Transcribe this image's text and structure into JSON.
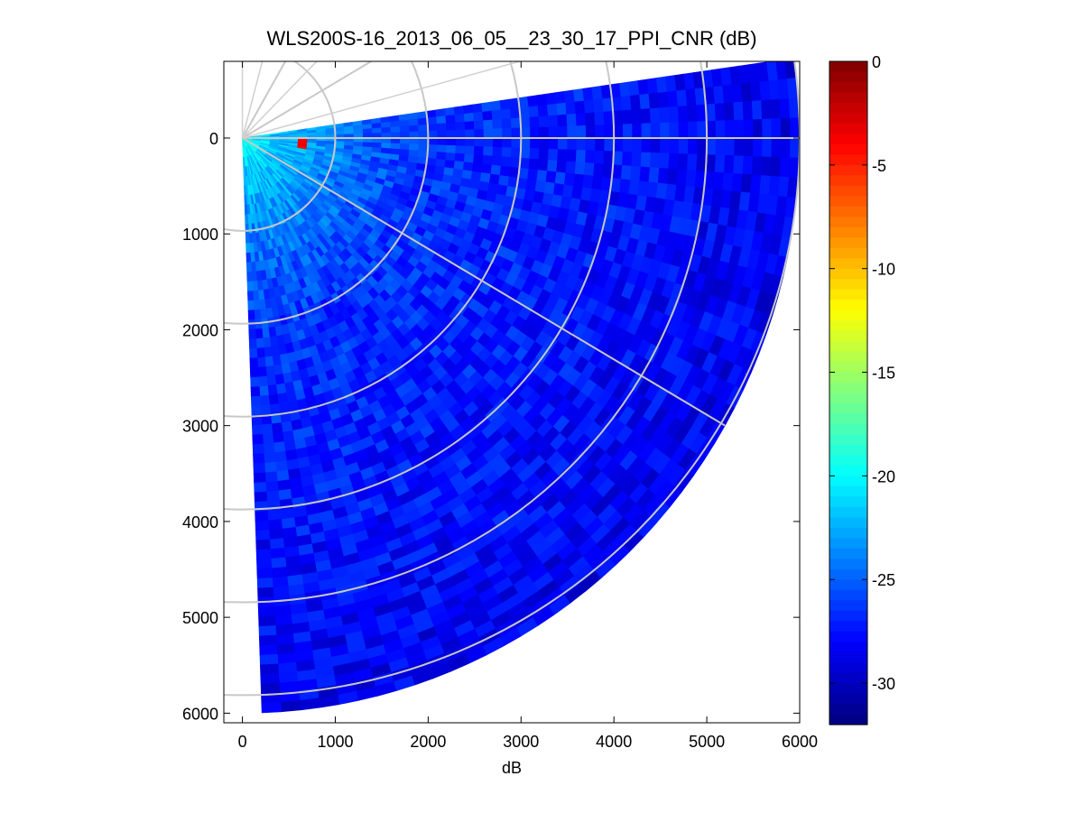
{
  "chart_data": {
    "type": "heatmap",
    "subtype": "polar-ppi",
    "title": "WLS200S-16_2013_06_05__23_30_17_PPI_CNR (dB)",
    "xlabel": "dB",
    "ylabel": "",
    "xlim": [
      -200,
      6000
    ],
    "ylim": [
      -800,
      6100
    ],
    "y_axis_reversed": true,
    "xticks": [
      0,
      1000,
      2000,
      3000,
      4000,
      5000,
      6000
    ],
    "yticks": [
      0,
      1000,
      2000,
      3000,
      4000,
      5000,
      6000
    ],
    "grid": "polar",
    "range_rings": [
      1000,
      2000,
      3000,
      4000,
      5000,
      6000
    ],
    "radial_lines_deg": [
      30,
      60,
      90,
      120
    ],
    "sector": {
      "origin": [
        0,
        0
      ],
      "radius_max": 6000,
      "bearing_from_deg": 82,
      "bearing_to_deg": 178,
      "bearing_reference": "x-axis is 90, y-axis (down) is 180"
    },
    "range_gates": {
      "start": 100,
      "end": 6000,
      "step": 100
    },
    "azimuth_step_deg": 2,
    "cnr_profile": {
      "range_m": [
        100,
        300,
        600,
        1000,
        1500,
        2000,
        3000,
        4000,
        5000,
        6000
      ],
      "cnr_db": [
        -20,
        -21.5,
        -22.5,
        -24,
        -25.5,
        -26.5,
        -27,
        -27.5,
        -28,
        -28.5
      ]
    },
    "hot_spot": {
      "x": 650,
      "y": 60,
      "cnr_db": -3
    },
    "colorbar": {
      "colormap": "jet",
      "min": -32,
      "max": 0,
      "ticks": [
        0,
        -5,
        -10,
        -15,
        -20,
        -25,
        -30
      ],
      "tick_labels": [
        "0",
        "-5",
        "-10",
        "-15",
        "-20",
        "-25",
        "-30"
      ],
      "levels": 64
    }
  }
}
